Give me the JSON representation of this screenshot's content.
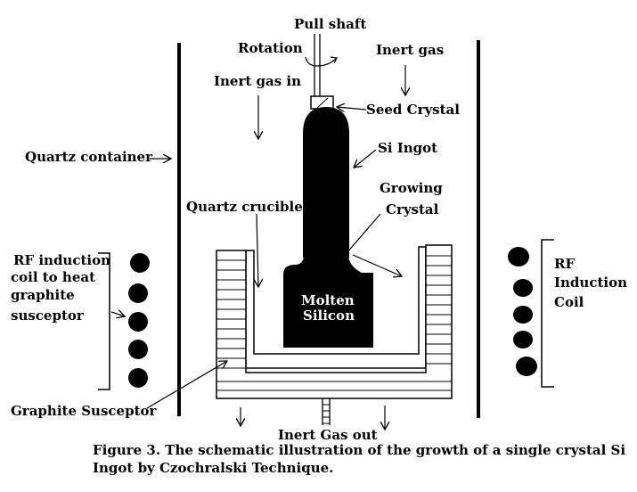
{
  "labels": {
    "pull_shaft": "Pull shaft",
    "rotation": "Rotation",
    "inert_gas": "Inert gas",
    "inert_gas_in": "Inert gas in",
    "seed_crystal": "Seed Crystal",
    "si_ingot": "Si Ingot",
    "quartz_container": "Quartz container",
    "growing_crystal_1": "Growing",
    "growing_crystal_2": "Crystal",
    "quartz_crucible": "Quartz crucible",
    "rf_left_1": "RF induction",
    "rf_left_2": "coil to heat",
    "rf_left_3": "graphite",
    "rf_left_4": "susceptor",
    "rf_right_1": "RF",
    "rf_right_2": "Induction",
    "rf_right_3": "Coil",
    "molten_1": "Molten",
    "molten_2": "Silicon",
    "graphite_susceptor": "Graphite Susceptor",
    "inert_gas_out": "Inert Gas out"
  },
  "caption": {
    "line1": "Figure 3. The schematic illustration of the growth of a single crystal Si",
    "line2": "Ingot by Czochralski Technique."
  },
  "colors": {
    "ink": "#000000",
    "background": "#ffffff"
  }
}
